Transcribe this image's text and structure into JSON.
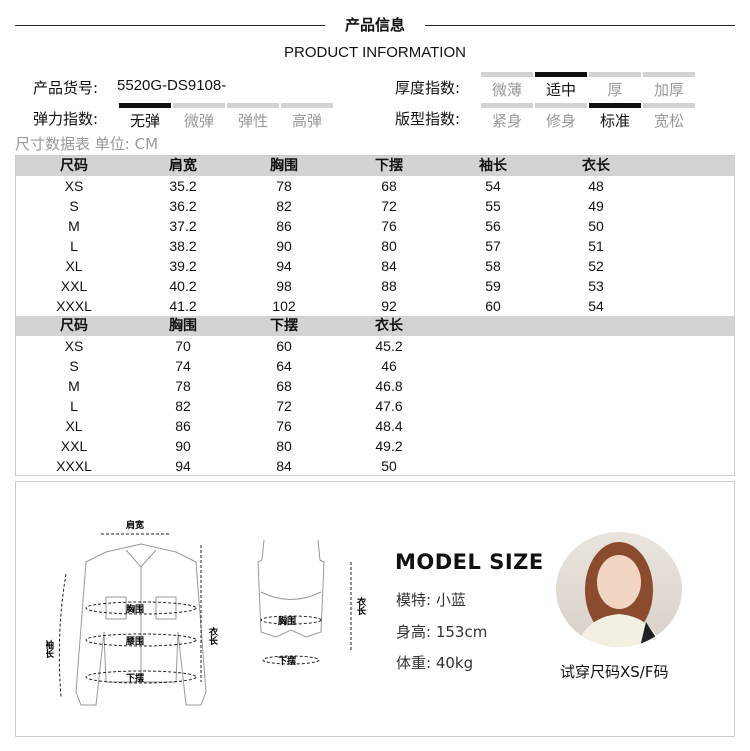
{
  "header": {
    "title": "产品信息",
    "subtitle": "PRODUCT INFORMATION"
  },
  "info": {
    "sku_label": "产品货号:",
    "sku_value": "5520G-DS9108-",
    "thickness_label": "厚度指数:",
    "thickness_options": [
      "微薄",
      "适中",
      "厚",
      "加厚"
    ],
    "thickness_selected": "适中",
    "elasticity_label": "弹力指数:",
    "elasticity_options": [
      "无弹",
      "微弹",
      "弹性",
      "高弹"
    ],
    "elasticity_selected": "无弹",
    "fit_label": "版型指数:",
    "fit_options": [
      "紧身",
      "修身",
      "标准",
      "宽松"
    ],
    "fit_selected": "标准"
  },
  "size_table_caption": "尺寸数据表 单位: CM",
  "table1": {
    "headers": [
      "尺码",
      "肩宽",
      "胸围",
      "下摆",
      "袖长",
      "衣长"
    ],
    "rows": [
      [
        "XS",
        "35.2",
        "78",
        "68",
        "54",
        "48"
      ],
      [
        "S",
        "36.2",
        "82",
        "72",
        "55",
        "49"
      ],
      [
        "M",
        "37.2",
        "86",
        "76",
        "56",
        "50"
      ],
      [
        "L",
        "38.2",
        "90",
        "80",
        "57",
        "51"
      ],
      [
        "XL",
        "39.2",
        "94",
        "84",
        "58",
        "52"
      ],
      [
        "XXL",
        "40.2",
        "98",
        "88",
        "59",
        "53"
      ],
      [
        "XXXL",
        "41.2",
        "102",
        "92",
        "60",
        "54"
      ]
    ]
  },
  "table2": {
    "headers": [
      "尺码",
      "胸围",
      "下摆",
      "衣长"
    ],
    "rows": [
      [
        "XS",
        "70",
        "60",
        "45.2"
      ],
      [
        "S",
        "74",
        "64",
        "46"
      ],
      [
        "M",
        "78",
        "68",
        "46.8"
      ],
      [
        "L",
        "82",
        "72",
        "47.6"
      ],
      [
        "XL",
        "86",
        "76",
        "48.4"
      ],
      [
        "XXL",
        "90",
        "80",
        "49.2"
      ],
      [
        "XXXL",
        "94",
        "84",
        "50"
      ]
    ]
  },
  "diagram": {
    "shoulder": "肩宽",
    "chest": "胸围",
    "waist": "腰围",
    "hem": "下摆",
    "sleeve": "袖长",
    "length": "衣长"
  },
  "model": {
    "title": "MODEL SIZE",
    "name": "模特: 小蓝",
    "height": "身高: 153cm",
    "weight": "体重: 40kg",
    "caption": "试穿尺码XS/F码"
  }
}
